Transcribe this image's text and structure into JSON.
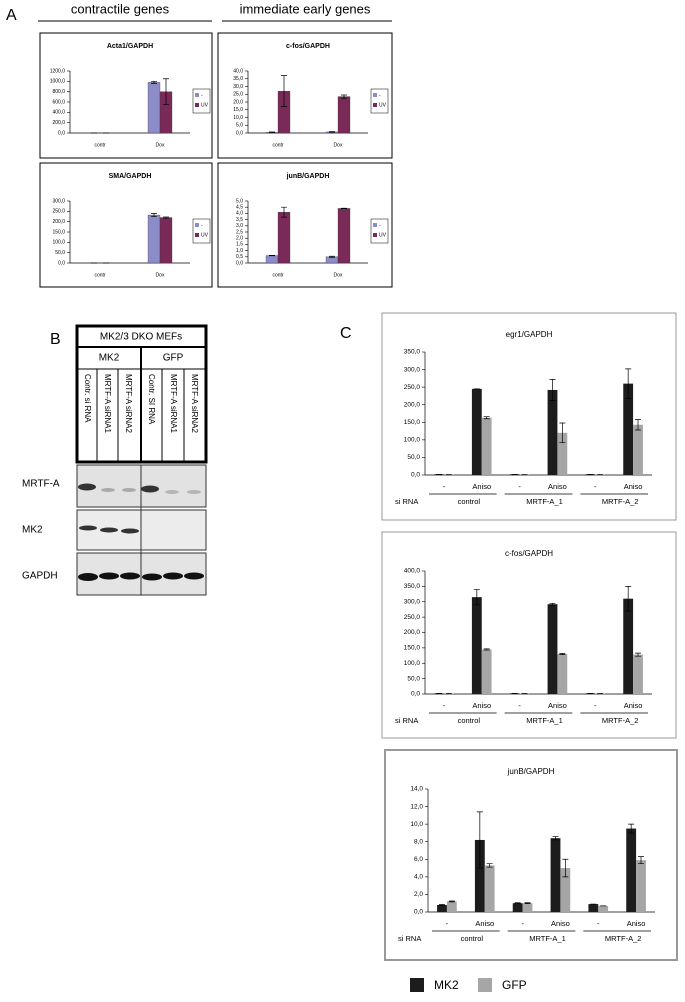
{
  "panels": {
    "a": "A",
    "b": "B",
    "c": "C"
  },
  "headers": {
    "left": "contractile genes",
    "right": "immediate early genes"
  },
  "blot": {
    "title": "MK2/3 DKO MEFs",
    "groups": [
      "MK2",
      "GFP"
    ],
    "lanes": [
      "Contr. si RNA",
      "MRTF-A siRNA1",
      "MRTF-A siRNA2",
      "Contr. SI RNA",
      "MRTF-A siRNA1",
      "MRTF-A siRNA2"
    ],
    "rows": [
      "MRTF-A",
      "MK2",
      "GAPDH"
    ]
  },
  "legend": {
    "series": [
      {
        "name": "MK2",
        "color": "#1c1c1c"
      },
      {
        "name": "GFP",
        "color": "#a6a6a6"
      }
    ]
  },
  "chart_data": [
    {
      "type": "bar",
      "title": "Acta1/GAPDH",
      "categories": [
        "contr",
        "Dox"
      ],
      "series": [
        {
          "name": "-",
          "color": "#8c8cc8",
          "values": [
            0,
            980
          ],
          "errors": [
            0,
            20
          ]
        },
        {
          "name": "UV",
          "color": "#7a2a58",
          "values": [
            0,
            800
          ],
          "errors": [
            0,
            250
          ]
        }
      ],
      "ylim": [
        0,
        1200
      ],
      "yticks": [
        {
          "value": 0,
          "label": "0,0"
        },
        {
          "value": 200,
          "label": "200,0"
        },
        {
          "value": 400,
          "label": "400,0"
        },
        {
          "value": 600,
          "label": "600,0"
        },
        {
          "value": 800,
          "label": "800,0"
        },
        {
          "value": 1000,
          "label": "1000,0"
        },
        {
          "value": 1200,
          "label": "1200,0"
        }
      ]
    },
    {
      "type": "bar",
      "title": "c-fos/GAPDH",
      "categories": [
        "contr",
        "Dox"
      ],
      "series": [
        {
          "name": "-",
          "color": "#8c8cc8",
          "values": [
            0.5,
            0.7
          ],
          "errors": [
            0.2,
            0.2
          ]
        },
        {
          "name": "UV",
          "color": "#7a2a58",
          "values": [
            27,
            23.5
          ],
          "errors": [
            10,
            1
          ]
        }
      ],
      "ylim": [
        0,
        40
      ],
      "yticks": [
        {
          "value": 0,
          "label": "0,0"
        },
        {
          "value": 5,
          "label": "5,0"
        },
        {
          "value": 10,
          "label": "10,0"
        },
        {
          "value": 15,
          "label": "15,0"
        },
        {
          "value": 20,
          "label": "20,0"
        },
        {
          "value": 25,
          "label": "25,0"
        },
        {
          "value": 30,
          "label": "30,0"
        },
        {
          "value": 35,
          "label": "35,0"
        },
        {
          "value": 40,
          "label": "40,0"
        }
      ]
    },
    {
      "type": "bar",
      "title": "SMA/GAPDH",
      "categories": [
        "contr",
        "Dox"
      ],
      "series": [
        {
          "name": "-",
          "color": "#8c8cc8",
          "values": [
            0,
            232
          ],
          "errors": [
            0,
            8
          ]
        },
        {
          "name": "UV",
          "color": "#7a2a58",
          "values": [
            0,
            220
          ],
          "errors": [
            0,
            3
          ]
        }
      ],
      "ylim": [
        0,
        300
      ],
      "yticks": [
        {
          "value": 0,
          "label": "0,0"
        },
        {
          "value": 50,
          "label": "50,0"
        },
        {
          "value": 100,
          "label": "100,0"
        },
        {
          "value": 150,
          "label": "150,0"
        },
        {
          "value": 200,
          "label": "200,0"
        },
        {
          "value": 250,
          "label": "250,0"
        },
        {
          "value": 300,
          "label": "300,0"
        }
      ]
    },
    {
      "type": "bar",
      "title": "junB/GAPDH",
      "categories": [
        "contr",
        "Dox"
      ],
      "series": [
        {
          "name": "-",
          "color": "#8c8cc8",
          "values": [
            0.6,
            0.5
          ],
          "errors": [
            0.02,
            0.05
          ]
        },
        {
          "name": "UV",
          "color": "#7a2a58",
          "values": [
            4.1,
            4.4
          ],
          "errors": [
            0.4,
            0.02
          ]
        }
      ],
      "ylim": [
        0,
        5
      ],
      "yticks": [
        {
          "value": 0,
          "label": "0,0"
        },
        {
          "value": 0.5,
          "label": "0,5"
        },
        {
          "value": 1,
          "label": "1,0"
        },
        {
          "value": 1.5,
          "label": "1,5"
        },
        {
          "value": 2,
          "label": "2,0"
        },
        {
          "value": 2.5,
          "label": "2,5"
        },
        {
          "value": 3,
          "label": "3,0"
        },
        {
          "value": 3.5,
          "label": "3,5"
        },
        {
          "value": 4,
          "label": "4,0"
        },
        {
          "value": 4.5,
          "label": "4,5"
        },
        {
          "value": 5,
          "label": "5,0"
        }
      ]
    },
    {
      "type": "bar",
      "title": "egr1/GAPDH",
      "categories": [
        "-",
        "Aniso",
        "-",
        "Aniso",
        "-",
        "Aniso"
      ],
      "groups": [
        "control",
        "MRTF-A_1",
        "MRTF-A_2"
      ],
      "row_label": "si RNA",
      "series": [
        {
          "color": "#1c1c1c",
          "values": [
            2,
            245,
            2,
            242,
            2,
            260
          ],
          "errors": [
            0,
            0,
            0,
            30,
            0,
            42
          ]
        },
        {
          "color": "#a6a6a6",
          "values": [
            2,
            163,
            2,
            120,
            1,
            143
          ],
          "errors": [
            0,
            3,
            0,
            28,
            0,
            15
          ]
        }
      ],
      "ylim": [
        0,
        350
      ],
      "yticks": [
        {
          "value": 0,
          "label": "0,0"
        },
        {
          "value": 50,
          "label": "50,0"
        },
        {
          "value": 100,
          "label": "100,0"
        },
        {
          "value": 150,
          "label": "150,0"
        },
        {
          "value": 200,
          "label": "200,0"
        },
        {
          "value": 250,
          "label": "250,0"
        },
        {
          "value": 300,
          "label": "300,0"
        },
        {
          "value": 350,
          "label": "350,0"
        }
      ]
    },
    {
      "type": "bar",
      "title": "c-fos/GAPDH",
      "categories": [
        "-",
        "Aniso",
        "-",
        "Aniso",
        "-",
        "Aniso"
      ],
      "groups": [
        "control",
        "MRTF-A_1",
        "MRTF-A_2"
      ],
      "row_label": "si RNA",
      "series": [
        {
          "color": "#1c1c1c",
          "values": [
            2,
            315,
            2,
            292,
            2,
            310
          ],
          "errors": [
            0,
            25,
            0,
            3,
            0,
            40
          ]
        },
        {
          "color": "#a6a6a6",
          "values": [
            2,
            145,
            2,
            130,
            2,
            128
          ],
          "errors": [
            0,
            2,
            0,
            2,
            0,
            5
          ]
        }
      ],
      "ylim": [
        0,
        400
      ],
      "yticks": [
        {
          "value": 0,
          "label": "0,0"
        },
        {
          "value": 50,
          "label": "50,0"
        },
        {
          "value": 100,
          "label": "100,0"
        },
        {
          "value": 150,
          "label": "150,0"
        },
        {
          "value": 200,
          "label": "200,0"
        },
        {
          "value": 250,
          "label": "250,0"
        },
        {
          "value": 300,
          "label": "300,0"
        },
        {
          "value": 350,
          "label": "350,0"
        },
        {
          "value": 400,
          "label": "400,0"
        }
      ]
    },
    {
      "type": "bar",
      "title": "junB/GAPDH",
      "categories": [
        "-",
        "Aniso",
        "-",
        "Aniso",
        "-",
        "Aniso"
      ],
      "groups": [
        "control",
        "MRTF-A_1",
        "MRTF-A_2"
      ],
      "row_label": "si RNA",
      "series": [
        {
          "color": "#1c1c1c",
          "values": [
            0.8,
            8.2,
            1.0,
            8.4,
            0.9,
            9.5
          ],
          "errors": [
            0.05,
            3.2,
            0.05,
            0.2,
            0,
            0.5
          ]
        },
        {
          "color": "#a6a6a6",
          "values": [
            1.2,
            5.3,
            1.0,
            5.0,
            0.7,
            5.9
          ],
          "errors": [
            0.05,
            0.2,
            0.05,
            1.0,
            0,
            0.4
          ]
        }
      ],
      "ylim": [
        0,
        14
      ],
      "yticks": [
        {
          "value": 0,
          "label": "0,0"
        },
        {
          "value": 2,
          "label": "2,0"
        },
        {
          "value": 4,
          "label": "4,0"
        },
        {
          "value": 6,
          "label": "6,0"
        },
        {
          "value": 8,
          "label": "8,0"
        },
        {
          "value": 10,
          "label": "10,0"
        },
        {
          "value": 12,
          "label": "12,0"
        },
        {
          "value": 14,
          "label": "14,0"
        }
      ]
    }
  ]
}
